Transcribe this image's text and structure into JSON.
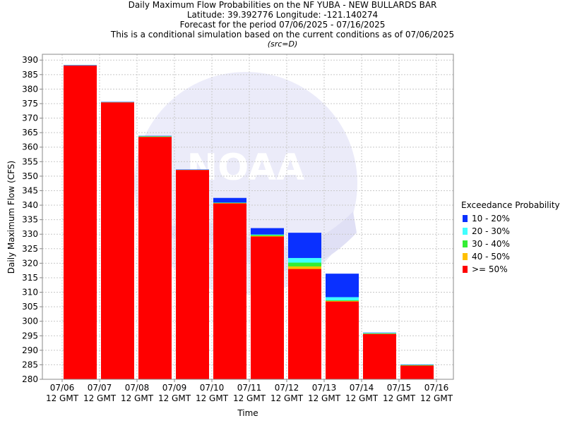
{
  "chart_data": {
    "type": "bar",
    "title_lines": [
      "Daily Maximum Flow Probabilities on the NF YUBA - NEW BULLARDS BAR",
      "Latitude: 39.392776 Longitude: -121.140274",
      "Forecast for the period 07/06/2025 - 07/16/2025",
      "This is a conditional simulation based on the current conditions as of 07/06/2025"
    ],
    "subtitle": "(src=D)",
    "xlabel": "Time",
    "ylabel": "Daily Maximum Flow (CFS)",
    "ylim": [
      280,
      392
    ],
    "yticks": [
      280,
      285,
      290,
      295,
      300,
      305,
      310,
      315,
      320,
      325,
      330,
      335,
      340,
      345,
      350,
      355,
      360,
      365,
      370,
      375,
      380,
      385,
      390
    ],
    "x_ticks": [
      {
        "date": "07/06",
        "time": "12 GMT"
      },
      {
        "date": "07/07",
        "time": "12 GMT"
      },
      {
        "date": "07/08",
        "time": "12 GMT"
      },
      {
        "date": "07/09",
        "time": "12 GMT"
      },
      {
        "date": "07/10",
        "time": "12 GMT"
      },
      {
        "date": "07/11",
        "time": "12 GMT"
      },
      {
        "date": "07/12",
        "time": "12 GMT"
      },
      {
        "date": "07/13",
        "time": "12 GMT"
      },
      {
        "date": "07/14",
        "time": "12 GMT"
      },
      {
        "date": "07/15",
        "time": "12 GMT"
      },
      {
        "date": "07/16",
        "time": "12 GMT"
      }
    ],
    "categories": [
      "07/06",
      "07/07",
      "07/08",
      "07/09",
      "07/10",
      "07/11",
      "07/12",
      "07/13",
      "07/14",
      "07/15"
    ],
    "legend_title": "Exceedance Probability",
    "legend_placement": "right",
    "grid": true,
    "series": [
      {
        "name": ">= 50%",
        "color": "#ff0000",
        "values": [
          388.1,
          375.4,
          363.5,
          352.1,
          340.6,
          329.2,
          318.0,
          306.8,
          295.6,
          284.7
        ]
      },
      {
        "name": "40 - 50%",
        "color": "#ffc000",
        "values": [
          388.1,
          375.4,
          363.6,
          352.1,
          340.7,
          329.4,
          318.9,
          307.0,
          295.7,
          284.8
        ]
      },
      {
        "name": "30 - 40%",
        "color": "#33ee33",
        "values": [
          388.1,
          375.4,
          363.7,
          352.1,
          340.8,
          329.7,
          320.2,
          307.2,
          295.8,
          284.9
        ]
      },
      {
        "name": "20 - 30%",
        "color": "#40ffff",
        "values": [
          388.2,
          375.5,
          363.8,
          352.2,
          340.9,
          329.9,
          321.8,
          308.3,
          296.0,
          285.0
        ]
      },
      {
        "name": "10 - 20%",
        "color": "#0a30ff",
        "values": [
          388.3,
          375.6,
          363.9,
          352.3,
          342.5,
          332.1,
          330.5,
          316.4,
          296.1,
          285.1
        ]
      }
    ],
    "watermark": "NOAA"
  }
}
